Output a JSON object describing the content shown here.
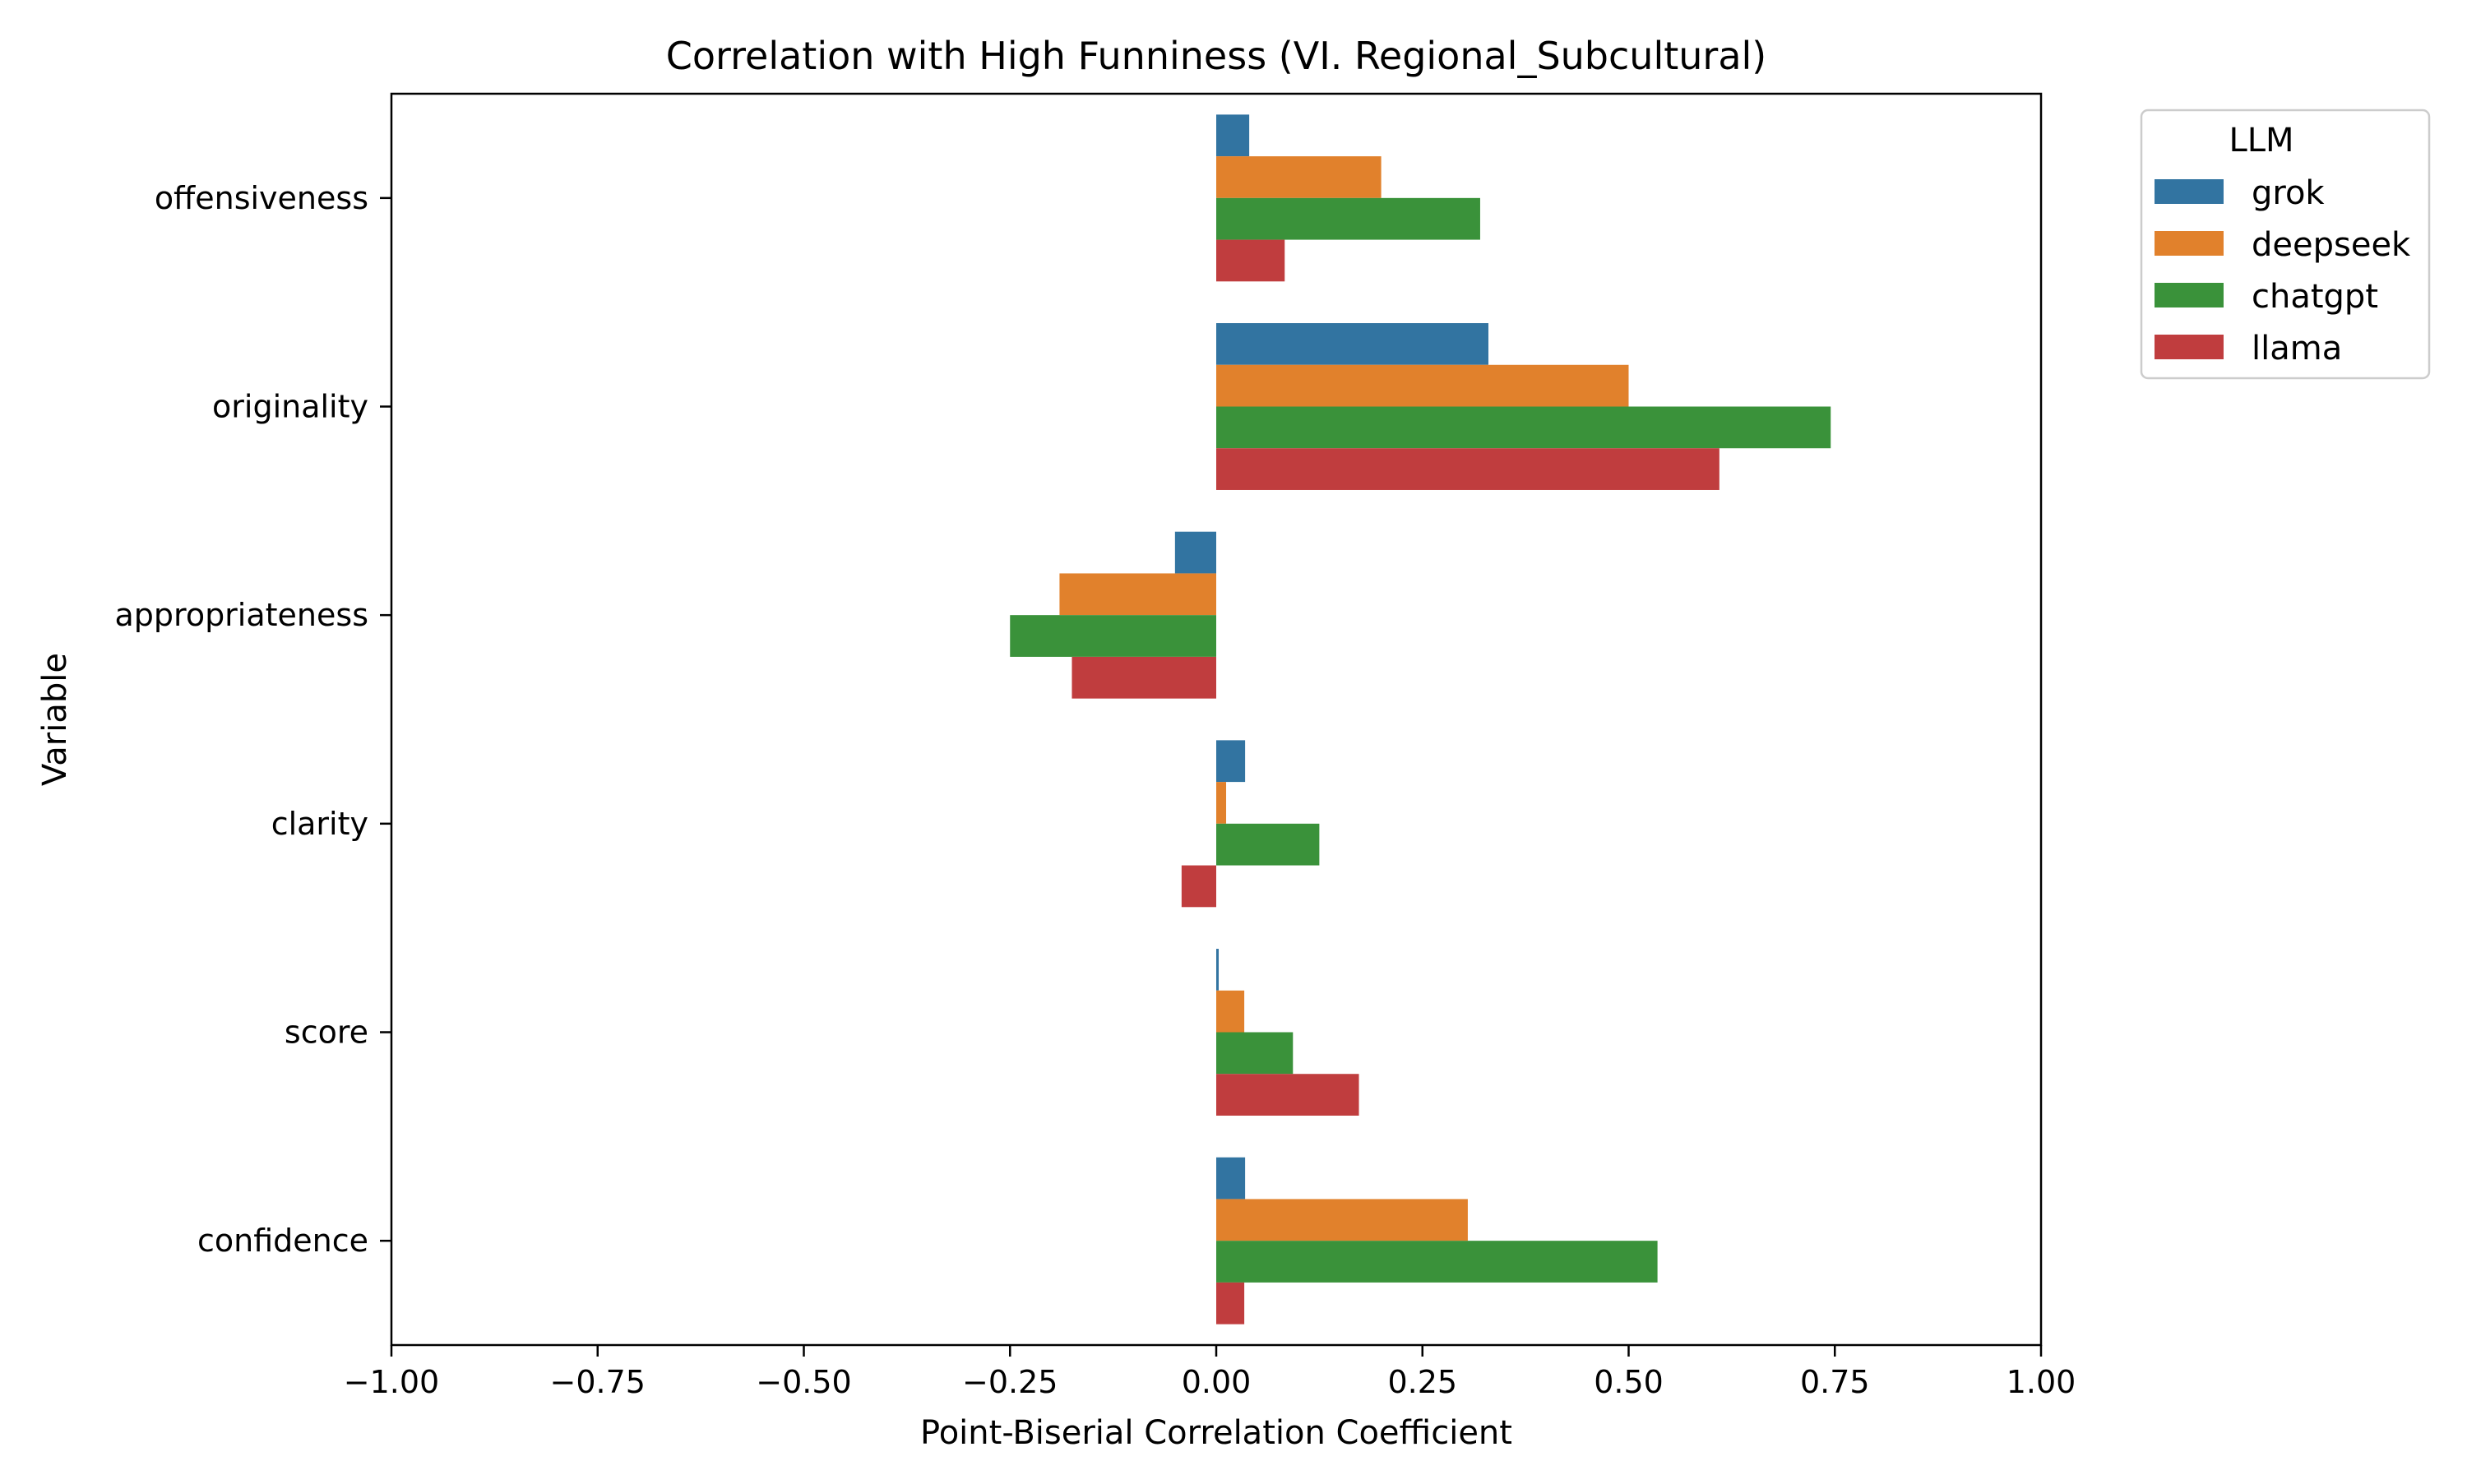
{
  "chart_data": {
    "type": "bar",
    "orientation": "horizontal",
    "title": "Correlation with High Funniness (VI. Regional_Subcultural)",
    "xlabel": "Point-Biserial Correlation Coefficient",
    "ylabel": "Variable",
    "xlim": [
      -1.0,
      1.0
    ],
    "x_ticks": [
      -1.0,
      -0.75,
      -0.5,
      -0.25,
      0.0,
      0.25,
      0.5,
      0.75,
      1.0
    ],
    "x_tick_labels": [
      "−1.00",
      "−0.75",
      "−0.50",
      "−0.25",
      "0.00",
      "0.25",
      "0.50",
      "0.75",
      "1.00"
    ],
    "categories": [
      "offensiveness",
      "originality",
      "appropriateness",
      "clarity",
      "score",
      "confidence"
    ],
    "legend": {
      "title": "LLM",
      "placement": "outside top-right"
    },
    "grid": false,
    "series": [
      {
        "name": "grok",
        "color": "#3274a1",
        "values": [
          0.04,
          0.33,
          -0.05,
          0.035,
          0.003,
          0.035
        ]
      },
      {
        "name": "deepseek",
        "color": "#e1812c",
        "values": [
          0.2,
          0.5,
          -0.19,
          0.012,
          0.034,
          0.305
        ]
      },
      {
        "name": "chatgpt",
        "color": "#3a923a",
        "values": [
          0.32,
          0.745,
          -0.25,
          0.125,
          0.093,
          0.535
        ]
      },
      {
        "name": "llama",
        "color": "#c03d3e",
        "values": [
          0.083,
          0.61,
          -0.175,
          -0.042,
          0.173,
          0.034
        ]
      }
    ]
  }
}
